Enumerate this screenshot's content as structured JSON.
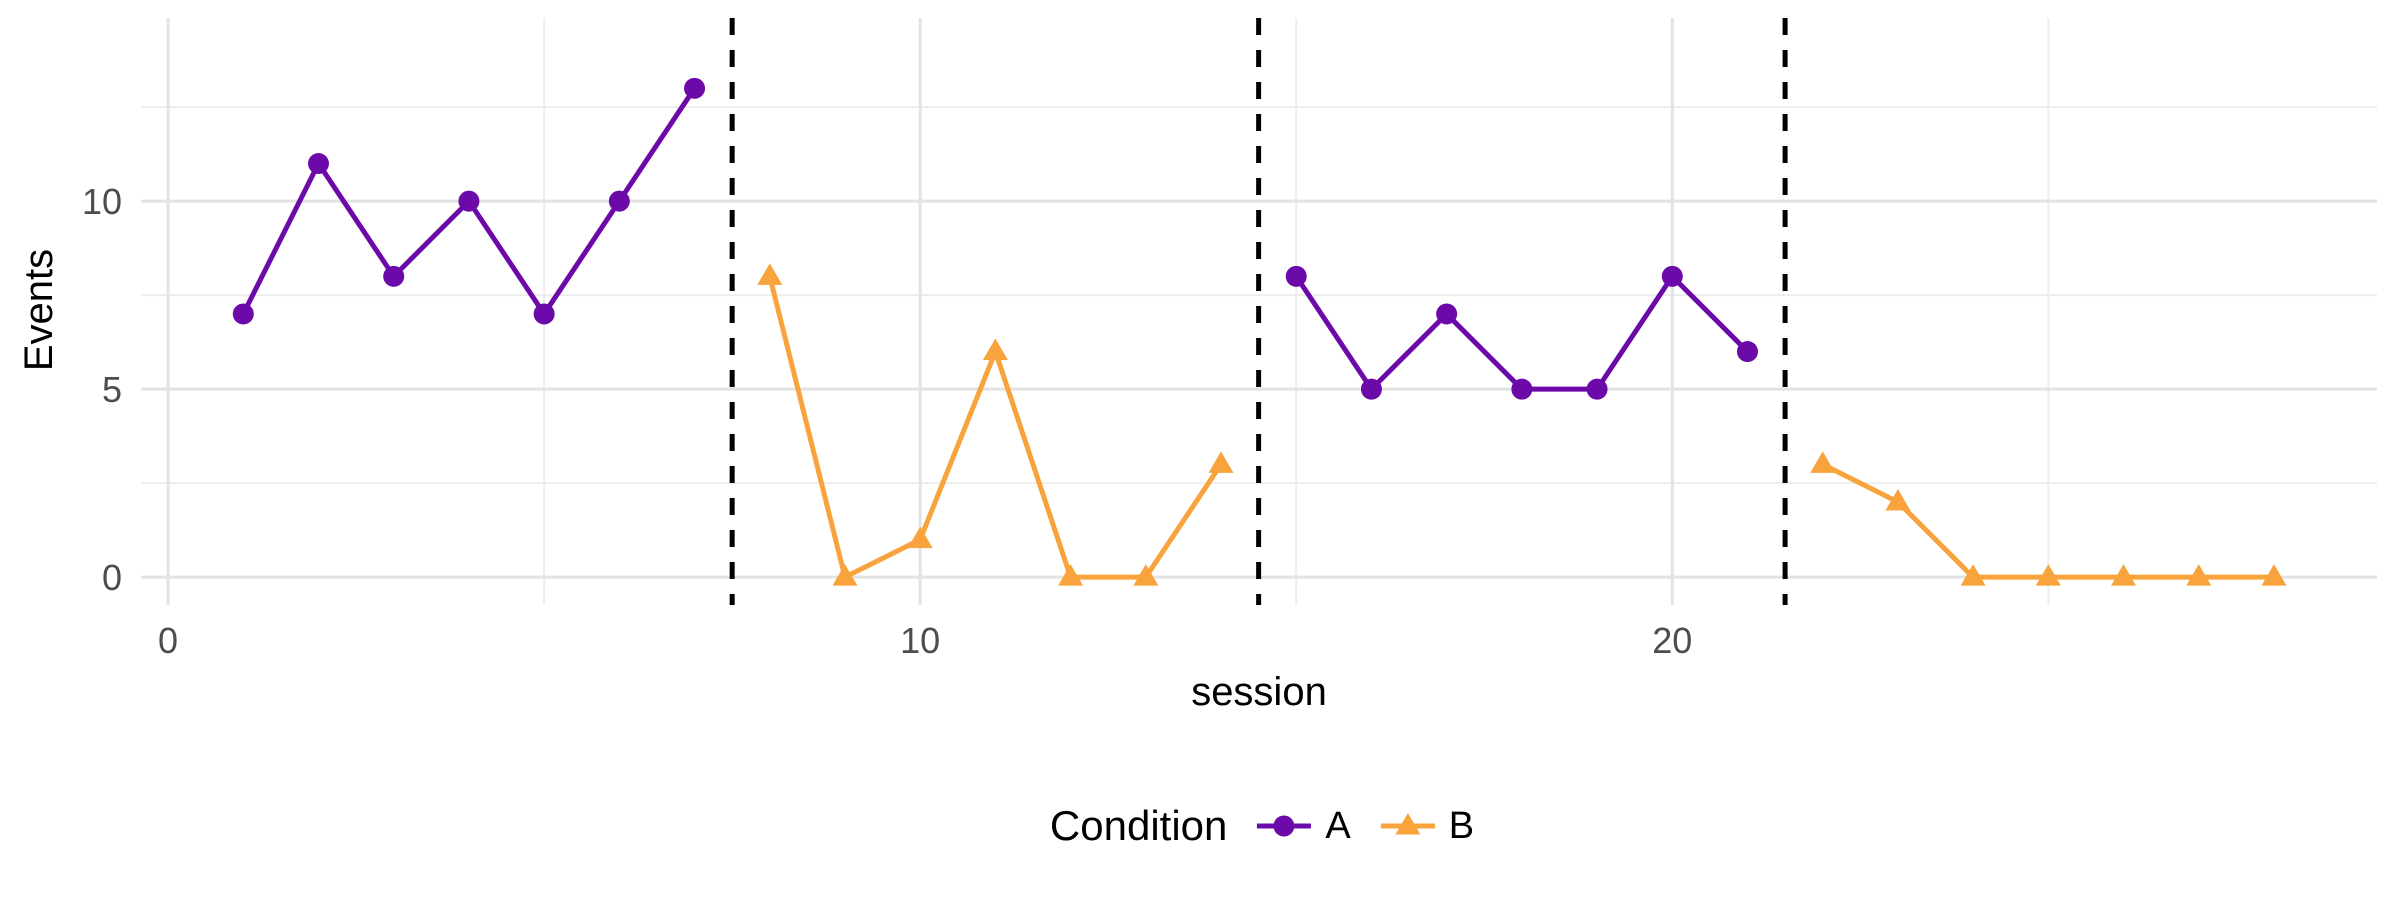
{
  "figure": {
    "background": "#ffffff"
  },
  "chart_data": {
    "type": "line",
    "title": "",
    "xlabel": "session",
    "ylabel": "Events",
    "xlim": [
      -0.36,
      29.37
    ],
    "ylim": [
      -0.74,
      14.87
    ],
    "x_ticks": [
      0,
      10,
      20
    ],
    "y_ticks": [
      0,
      5,
      10
    ],
    "x_minor_gridlines": [
      5,
      15,
      25
    ],
    "y_minor_gridlines": [
      2.5,
      7.5,
      12.5
    ],
    "grid": true,
    "legend_position": "bottom",
    "phase_change_lines_x": [
      7.5,
      14.5,
      21.5
    ],
    "phase_line_style": {
      "color": "#000000",
      "dashed": true
    },
    "series": [
      {
        "name": "A-phase-1",
        "condition": "A",
        "color": "#6C09A9",
        "marker": "circle",
        "x": [
          1,
          2,
          3,
          4,
          5,
          6,
          7
        ],
        "y": [
          7,
          11,
          8,
          10,
          7,
          10,
          13
        ]
      },
      {
        "name": "B-phase-2",
        "condition": "B",
        "color": "#F8A33B",
        "marker": "triangle",
        "x": [
          8,
          9,
          10,
          11,
          12,
          13,
          14
        ],
        "y": [
          8,
          0,
          1,
          6,
          0,
          0,
          3
        ]
      },
      {
        "name": "A-phase-3",
        "condition": "A",
        "color": "#6C09A9",
        "marker": "circle",
        "x": [
          15,
          16,
          17,
          18,
          19,
          20,
          21
        ],
        "y": [
          8,
          5,
          7,
          5,
          5,
          8,
          6
        ]
      },
      {
        "name": "B-phase-4",
        "condition": "B",
        "color": "#F8A33B",
        "marker": "triangle",
        "x": [
          22,
          23,
          24,
          25,
          26,
          27,
          28
        ],
        "y": [
          3,
          2,
          0,
          0,
          0,
          0,
          0
        ]
      }
    ],
    "legend": {
      "title": "Condition",
      "entries": [
        {
          "label": "A",
          "color": "#6C09A9",
          "marker": "circle"
        },
        {
          "label": "B",
          "color": "#F8A33B",
          "marker": "triangle"
        }
      ]
    },
    "colors": {
      "grid_major": "#E3E3E3",
      "grid_minor": "#EDEDED",
      "tick_label": "#4D4D4D",
      "axis_title": "#000000",
      "phase_line": "#000000"
    }
  }
}
